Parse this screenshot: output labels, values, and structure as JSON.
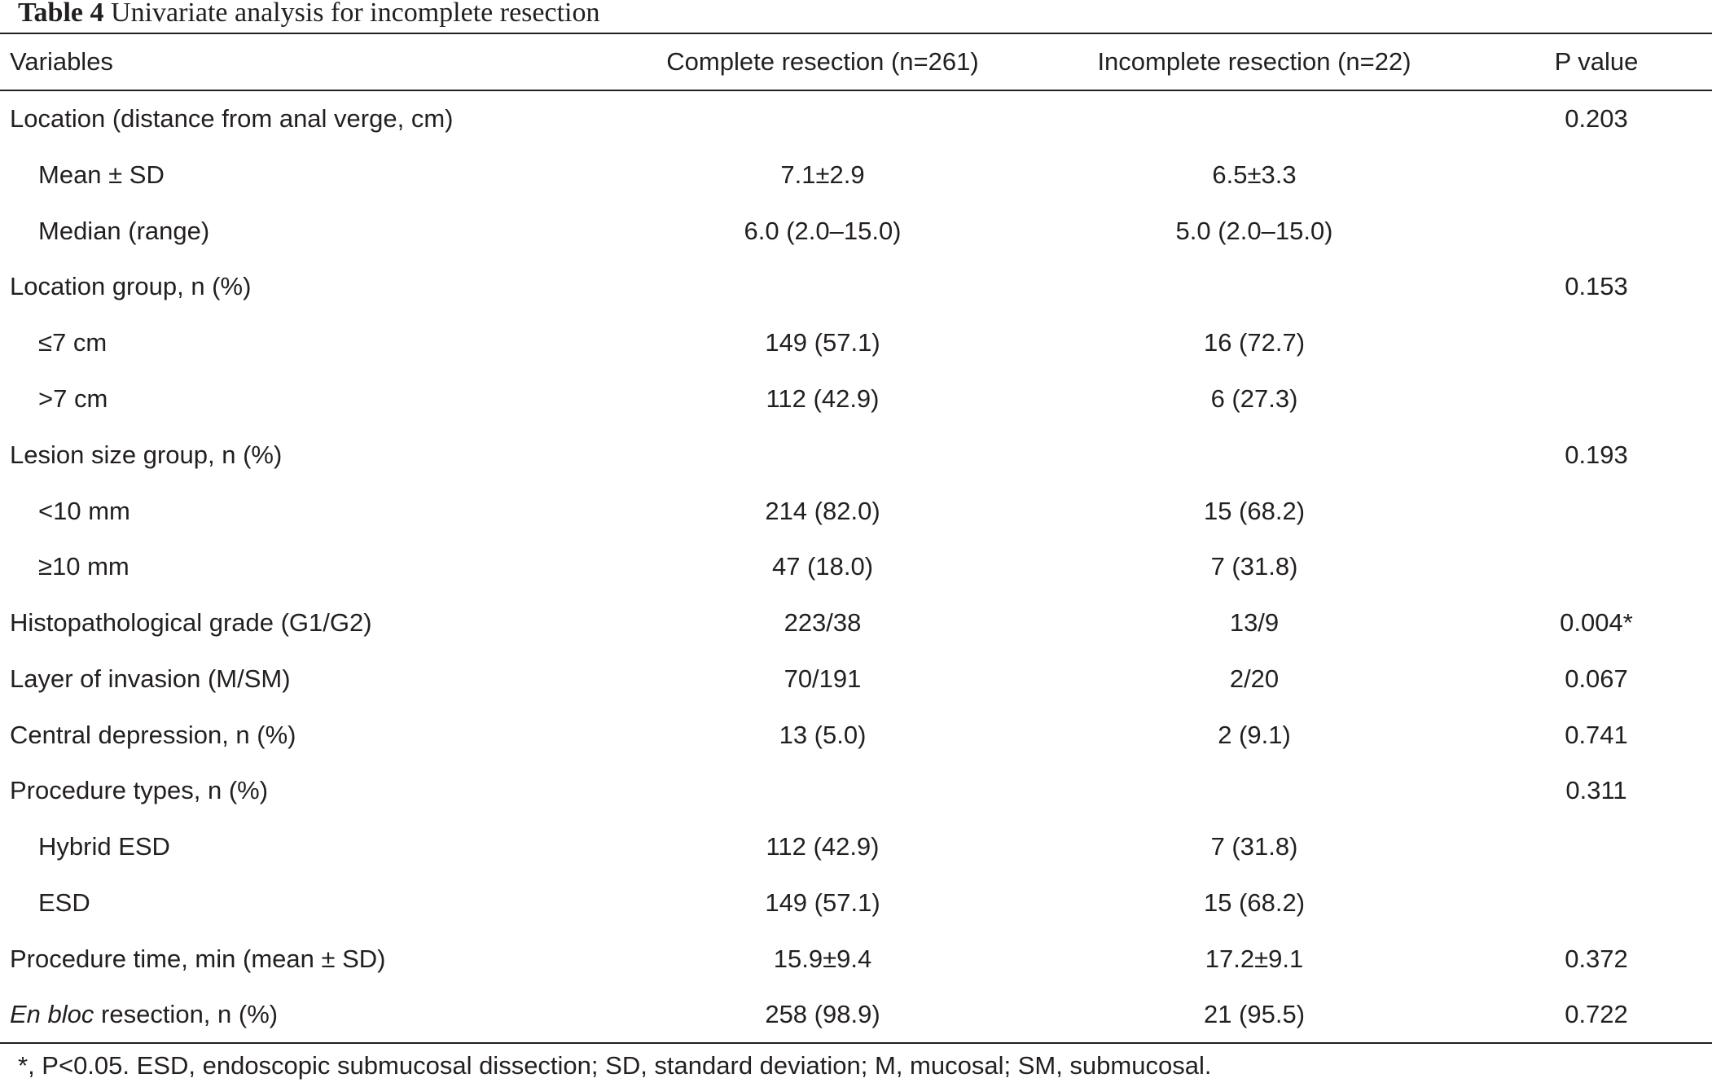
{
  "caption": {
    "label": "Table 4",
    "title": "Univariate analysis for incomplete resection"
  },
  "header": {
    "variables": "Variables",
    "complete": "Complete resection (n=261)",
    "incomplete": "Incomplete resection (n=22)",
    "pvalue": "P value"
  },
  "rows": [
    {
      "label": "Location (distance from anal verge, cm)",
      "complete": "",
      "incomplete": "",
      "p": "0.203"
    },
    {
      "label": "Mean ± SD",
      "complete": "7.1±2.9",
      "incomplete": "6.5±3.3",
      "p": ""
    },
    {
      "label": "Median (range)",
      "complete": "6.0 (2.0–15.0)",
      "incomplete": "5.0 (2.0–15.0)",
      "p": ""
    },
    {
      "label": "Location group, n (%)",
      "complete": "",
      "incomplete": "",
      "p": "0.153"
    },
    {
      "label": "≤7 cm",
      "complete": "149 (57.1)",
      "incomplete": "16 (72.7)",
      "p": ""
    },
    {
      "label": ">7 cm",
      "complete": "112 (42.9)",
      "incomplete": "6 (27.3)",
      "p": ""
    },
    {
      "label": "Lesion size group, n (%)",
      "complete": "",
      "incomplete": "",
      "p": "0.193"
    },
    {
      "label": "<10 mm",
      "complete": "214 (82.0)",
      "incomplete": "15 (68.2)",
      "p": ""
    },
    {
      "label": "≥10 mm",
      "complete": "47 (18.0)",
      "incomplete": "7 (31.8)",
      "p": ""
    },
    {
      "label": "Histopathological grade (G1/G2)",
      "complete": "223/38",
      "incomplete": "13/9",
      "p": "0.004*"
    },
    {
      "label": "Layer of invasion (M/SM)",
      "complete": "70/191",
      "incomplete": "2/20",
      "p": "0.067"
    },
    {
      "label": "Central depression, n (%)",
      "complete": "13 (5.0)",
      "incomplete": "2 (9.1)",
      "p": "0.741"
    },
    {
      "label": "Procedure types, n (%)",
      "complete": "",
      "incomplete": "",
      "p": "0.311"
    },
    {
      "label": "Hybrid ESD",
      "complete": "112 (42.9)",
      "incomplete": "7 (31.8)",
      "p": ""
    },
    {
      "label": "ESD",
      "complete": "149 (57.1)",
      "incomplete": "15 (68.2)",
      "p": ""
    },
    {
      "label": "Procedure time, min (mean ± SD)",
      "complete": "15.9±9.4",
      "incomplete": "17.2±9.1",
      "p": "0.372"
    },
    {
      "label_italic": "En bloc",
      "label_rest": " resection, n (%)",
      "complete": "258 (98.9)",
      "incomplete": "21 (95.5)",
      "p": "0.722"
    }
  ],
  "footnote": "*, P<0.05. ESD, endoscopic submucosal dissection; SD, standard deviation; M, mucosal; SM, submucosal."
}
